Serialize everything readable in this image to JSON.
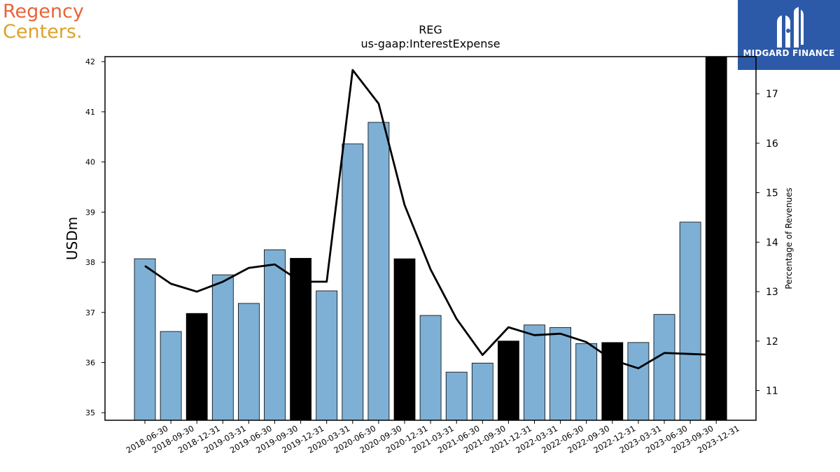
{
  "brand_left": {
    "line1": "Regency",
    "line2": "Centers.",
    "color1": "#e8643a",
    "color2": "#dba22a"
  },
  "brand_right": {
    "name": "MIDGARD FINANCE",
    "background": "#2d5aa8"
  },
  "chart_data": {
    "type": "bar",
    "title": "REG",
    "subtitle": "us-gaap:InterestExpense",
    "ylabel": "USDm",
    "y2label": "Percentage of Revenues",
    "ylim": [
      34.85,
      42.1
    ],
    "y2lim": [
      10.4,
      17.75
    ],
    "yticks": [
      35,
      36,
      37,
      38,
      39,
      40,
      41,
      42
    ],
    "y2ticks": [
      11,
      12,
      13,
      14,
      15,
      16,
      17
    ],
    "categories": [
      "2018-06-30",
      "2018-09-30",
      "2018-12-31",
      "2019-03-31",
      "2019-06-30",
      "2019-09-30",
      "2019-12-31",
      "2020-03-31",
      "2020-06-30",
      "2020-09-30",
      "2020-12-31",
      "2021-03-31",
      "2021-06-30",
      "2021-09-30",
      "2021-12-31",
      "2022-03-31",
      "2022-06-30",
      "2022-09-30",
      "2022-12-31",
      "2023-03-31",
      "2023-06-30",
      "2023-09-30",
      "2023-12-31"
    ],
    "series": [
      {
        "type": "bar",
        "values": [
          38.07,
          36.62,
          36.98,
          37.75,
          37.18,
          38.25,
          38.08,
          37.43,
          40.36,
          40.79,
          38.07,
          36.94,
          35.81,
          35.99,
          36.43,
          36.75,
          36.7,
          36.38,
          36.4,
          36.4,
          36.96,
          38.8,
          42.1
        ],
        "year_end_color": "#000000",
        "color": "#7eb0d5"
      },
      {
        "type": "line",
        "axis": "right",
        "color": "#000000",
        "values": [
          13.52,
          13.16,
          13.0,
          13.2,
          13.48,
          13.55,
          13.2,
          13.2,
          17.48,
          16.8,
          14.75,
          13.45,
          12.45,
          11.72,
          12.28,
          12.12,
          12.15,
          11.98,
          11.62,
          11.45,
          11.76,
          11.74,
          11.72
        ]
      }
    ],
    "grid": false
  }
}
